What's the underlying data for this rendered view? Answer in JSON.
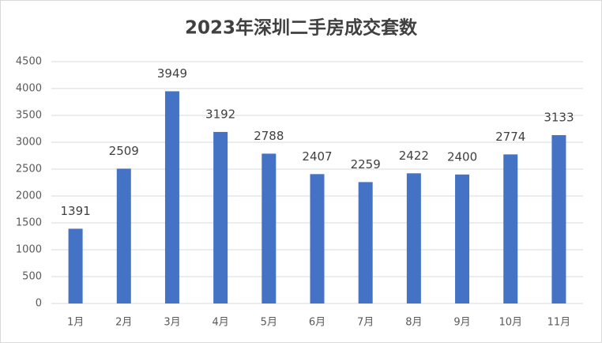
{
  "chart_data": {
    "type": "bar",
    "title": "2023年深圳二手房成交套数",
    "categories": [
      "1月",
      "2月",
      "3月",
      "4月",
      "5月",
      "6月",
      "7月",
      "8月",
      "9月",
      "10月",
      "11月"
    ],
    "values": [
      1391,
      2509,
      3949,
      3192,
      2788,
      2407,
      2259,
      2422,
      2400,
      2774,
      3133
    ],
    "color": "#4472c4",
    "ylim": [
      0,
      4500
    ],
    "yticks": [
      0,
      500,
      1000,
      1500,
      2000,
      2500,
      3000,
      3500,
      4000,
      4500
    ],
    "grid": true,
    "data_labels": true
  }
}
